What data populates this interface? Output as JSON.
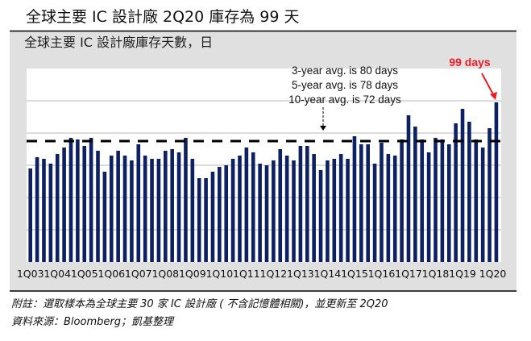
{
  "title": "全球主要 IC 設計廠 2Q20 庫存為 99 天",
  "footnote": "附註：選取樣本為全球主要 30 家 IC 設計廠 ( 不含記憶體相關)，並更新至 2Q20",
  "source": "資料來源：Bloomberg；凱基整理",
  "colors": {
    "bar": "#0c2063",
    "panel": "#e0e0e0",
    "highlight": "#ee1c25",
    "avg_line": "#000000"
  },
  "chart_data": {
    "type": "bar",
    "title": "全球主要 IC 設計廠庫存天數，日",
    "ylim": [
      0,
      120
    ],
    "grid": true,
    "y_tick_labels_shown": false,
    "categories": [
      "1Q03",
      "2Q03",
      "3Q03",
      "4Q03",
      "1Q04",
      "2Q04",
      "3Q04",
      "4Q04",
      "1Q05",
      "2Q05",
      "3Q05",
      "4Q05",
      "1Q06",
      "2Q06",
      "3Q06",
      "4Q06",
      "1Q07",
      "2Q07",
      "3Q07",
      "4Q07",
      "1Q08",
      "2Q08",
      "3Q08",
      "4Q08",
      "1Q09",
      "2Q09",
      "3Q09",
      "4Q09",
      "1Q10",
      "2Q10",
      "3Q10",
      "4Q10",
      "1Q11",
      "2Q11",
      "3Q11",
      "4Q11",
      "1Q12",
      "2Q12",
      "3Q12",
      "4Q12",
      "1Q13",
      "2Q13",
      "3Q13",
      "4Q13",
      "1Q14",
      "2Q14",
      "3Q14",
      "4Q14",
      "1Q15",
      "2Q15",
      "3Q15",
      "4Q15",
      "1Q16",
      "2Q16",
      "3Q16",
      "4Q16",
      "1Q17",
      "2Q17",
      "3Q17",
      "4Q17",
      "1Q18",
      "2Q18",
      "3Q18",
      "4Q18",
      "1Q19",
      "2Q19",
      "3Q19",
      "4Q19",
      "1Q20",
      "2Q20"
    ],
    "tick_labels": [
      "1Q03",
      "1Q04",
      "1Q05",
      "1Q06",
      "1Q07",
      "1Q08",
      "1Q09",
      "1Q10",
      "1Q11",
      "1Q12",
      "1Q13",
      "1Q14",
      "1Q15",
      "1Q16",
      "1Q17",
      "1Q18",
      "1Q19",
      "1Q20"
    ],
    "tick_label_last": "Q20",
    "values": [
      58,
      65,
      64,
      61,
      67,
      71,
      77,
      76,
      72,
      77,
      69,
      56,
      66,
      69,
      66,
      63,
      73,
      66,
      64,
      64,
      69,
      70,
      68,
      77,
      64,
      52,
      52,
      56,
      59,
      60,
      64,
      66,
      71,
      68,
      61,
      60,
      63,
      70,
      66,
      63,
      72,
      72,
      67,
      57,
      63,
      64,
      67,
      64,
      78,
      73,
      73,
      61,
      74,
      67,
      66,
      76,
      91,
      84,
      76,
      68,
      77,
      76,
      73,
      86,
      95,
      87,
      76,
      71,
      83,
      99
    ],
    "avg_line_value": 75,
    "annotations": {
      "avg_lines": [
        "3-year avg. is 80 days",
        "5-year avg. is 78 days",
        "10-year avg. is 72 days"
      ],
      "latest": "99 days"
    }
  }
}
